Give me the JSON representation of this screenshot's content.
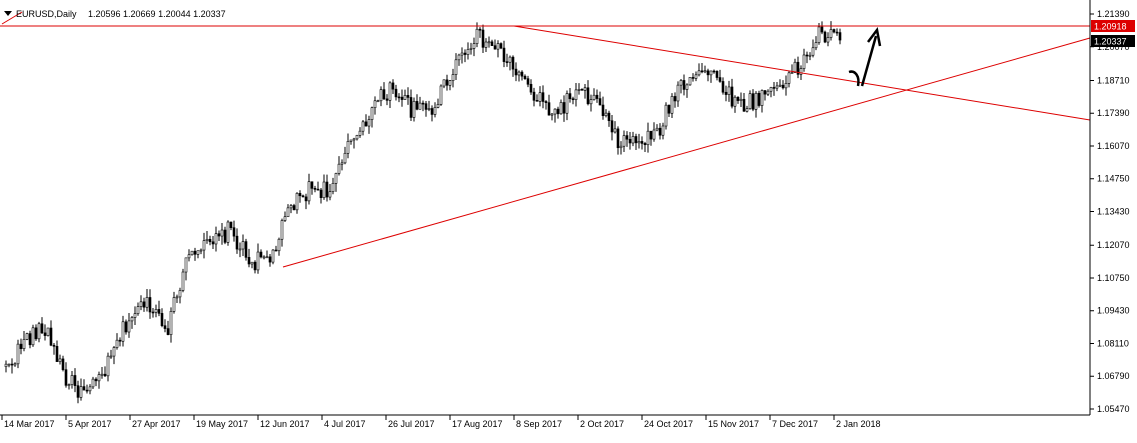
{
  "header": {
    "symbol": "EURUSD,Daily",
    "ohlc": "1.20596 1.20669 1.20044 1.20337"
  },
  "colors": {
    "background": "#ffffff",
    "candle": "#000000",
    "trendline": "#dd0000",
    "axis": "#000000",
    "grid_text": "#000000",
    "hline_label_bg": "#dd0000",
    "price_label_bg": "#000000",
    "label_text": "#ffffff"
  },
  "chart_data": {
    "type": "candlestick",
    "title": "EURUSD,Daily",
    "ylim": [
      1.0547,
      1.2139
    ],
    "y_ticks": [
      "1.21390",
      "1.20070",
      "1.18710",
      "1.17390",
      "1.16070",
      "1.14750",
      "1.13430",
      "1.12070",
      "1.10750",
      "1.09430",
      "1.08110",
      "1.06790",
      "1.05470"
    ],
    "x_ticks": [
      "14 Mar 2017",
      "5 Apr 2017",
      "27 Apr 2017",
      "19 May 2017",
      "12 Jun 2017",
      "4 Jul 2017",
      "26 Jul 2017",
      "17 Aug 2017",
      "8 Sep 2017",
      "2 Oct 2017",
      "24 Oct 2017",
      "15 Nov 2017",
      "7 Dec 2017",
      "2 Jan 2018"
    ],
    "price_labels": [
      {
        "value": 1.20918,
        "text": "1.20918",
        "style": "horizontal-line"
      },
      {
        "value": 1.20337,
        "text": "1.20337",
        "style": "current-price"
      }
    ],
    "close_path": [
      {
        "date": "14 Mar 2017",
        "close": 1.071
      },
      {
        "date": "22 Mar 2017",
        "close": 1.083
      },
      {
        "date": "29 Mar 2017",
        "close": 1.087
      },
      {
        "date": "5 Apr 2017",
        "close": 1.066
      },
      {
        "date": "12 Apr 2017",
        "close": 1.06
      },
      {
        "date": "20 Apr 2017",
        "close": 1.072
      },
      {
        "date": "27 Apr 2017",
        "close": 1.091
      },
      {
        "date": "5 May 2017",
        "close": 1.098
      },
      {
        "date": "12 May 2017",
        "close": 1.088
      },
      {
        "date": "19 May 2017",
        "close": 1.12
      },
      {
        "date": "26 May 2017",
        "close": 1.12
      },
      {
        "date": "2 Jun 2017",
        "close": 1.127
      },
      {
        "date": "12 Jun 2017",
        "close": 1.114
      },
      {
        "date": "20 Jun 2017",
        "close": 1.115
      },
      {
        "date": "27 Jun 2017",
        "close": 1.136
      },
      {
        "date": "4 Jul 2017",
        "close": 1.144
      },
      {
        "date": "12 Jul 2017",
        "close": 1.143
      },
      {
        "date": "19 Jul 2017",
        "close": 1.163
      },
      {
        "date": "26 Jul 2017",
        "close": 1.176
      },
      {
        "date": "2 Aug 2017",
        "close": 1.185
      },
      {
        "date": "9 Aug 2017",
        "close": 1.175
      },
      {
        "date": "17 Aug 2017",
        "close": 1.176
      },
      {
        "date": "25 Aug 2017",
        "close": 1.193
      },
      {
        "date": "30 Aug 2017",
        "close": 1.205
      },
      {
        "date": "8 Sep 2017",
        "close": 1.201
      },
      {
        "date": "15 Sep 2017",
        "close": 1.192
      },
      {
        "date": "22 Sep 2017",
        "close": 1.18
      },
      {
        "date": "2 Oct 2017",
        "close": 1.174
      },
      {
        "date": "9 Oct 2017",
        "close": 1.182
      },
      {
        "date": "16 Oct 2017",
        "close": 1.179
      },
      {
        "date": "24 Oct 2017",
        "close": 1.163
      },
      {
        "date": "31 Oct 2017",
        "close": 1.162
      },
      {
        "date": "8 Nov 2017",
        "close": 1.165
      },
      {
        "date": "15 Nov 2017",
        "close": 1.184
      },
      {
        "date": "22 Nov 2017",
        "close": 1.192
      },
      {
        "date": "30 Nov 2017",
        "close": 1.188
      },
      {
        "date": "7 Dec 2017",
        "close": 1.177
      },
      {
        "date": "14 Dec 2017",
        "close": 1.18
      },
      {
        "date": "21 Dec 2017",
        "close": 1.186
      },
      {
        "date": "27 Dec 2017",
        "close": 1.192
      },
      {
        "date": "2 Jan 2018",
        "close": 1.206
      },
      {
        "date": "4 Jan 2018",
        "close": 1.2034
      }
    ],
    "trendlines": [
      {
        "name": "ascending-support",
        "from": {
          "date": "12 Jun 2017",
          "price": 1.114
        },
        "to": {
          "date": "right-edge",
          "price": 1.201
        }
      },
      {
        "name": "descending-resistance",
        "from": {
          "date": "8 Sep 2017",
          "price": 1.2092
        },
        "to": {
          "date": "right-edge",
          "price": 1.171
        }
      },
      {
        "name": "horizontal-resistance",
        "price": 1.20918
      }
    ],
    "annotation": {
      "type": "hand-drawn-arrow",
      "direction": "up"
    },
    "grid": false
  }
}
